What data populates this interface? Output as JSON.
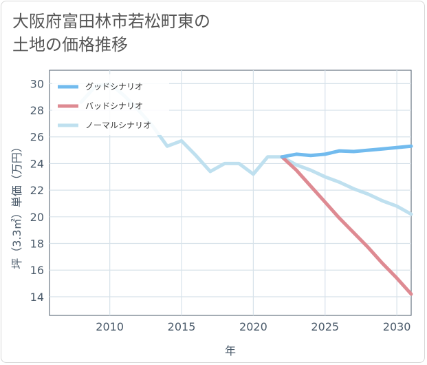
{
  "title_lines": [
    "大阪府富田林市若松町東の",
    "土地の価格推移"
  ],
  "chart_data": {
    "type": "line",
    "title": "大阪府富田林市若松町東の土地の価格推移",
    "xlabel": "年",
    "ylabel": "坪（3.3㎡）単価（万円）",
    "xlim": [
      2005.8,
      2031
    ],
    "ylim": [
      12.6,
      31
    ],
    "xticks": [
      2010,
      2015,
      2020,
      2025,
      2030
    ],
    "yticks": [
      14,
      16,
      18,
      20,
      22,
      24,
      26,
      28,
      30
    ],
    "grid": true,
    "legend_position": "top-left",
    "series": [
      {
        "name": "グッドシナリオ",
        "color": "#72bbee",
        "width": 5,
        "points": [
          [
            2022,
            24.5
          ],
          [
            2023,
            24.7
          ],
          [
            2024,
            24.6
          ],
          [
            2025,
            24.7
          ],
          [
            2026,
            24.95
          ],
          [
            2027,
            24.9
          ],
          [
            2028,
            25.0
          ],
          [
            2029,
            25.1
          ],
          [
            2030,
            25.2
          ],
          [
            2031,
            25.3
          ]
        ]
      },
      {
        "name": "バッドシナリオ",
        "color": "#de8a92",
        "width": 5,
        "points": [
          [
            2022,
            24.5
          ],
          [
            2023,
            23.5
          ],
          [
            2024,
            22.3
          ],
          [
            2025,
            21.1
          ],
          [
            2026,
            19.9
          ],
          [
            2027,
            18.8
          ],
          [
            2028,
            17.7
          ],
          [
            2029,
            16.5
          ],
          [
            2030,
            15.4
          ],
          [
            2031,
            14.2
          ]
        ]
      },
      {
        "name": "ノーマルシナリオ",
        "color": "#bfe0ef",
        "width": 5,
        "points": [
          [
            2008,
            28.6
          ],
          [
            2009,
            29.8
          ],
          [
            2010,
            30.0
          ],
          [
            2011,
            29.1
          ],
          [
            2012,
            28.0
          ],
          [
            2013,
            26.8
          ],
          [
            2014,
            25.3
          ],
          [
            2015,
            25.7
          ],
          [
            2016,
            24.6
          ],
          [
            2017,
            23.4
          ],
          [
            2018,
            24.0
          ],
          [
            2019,
            24.0
          ],
          [
            2020,
            23.2
          ],
          [
            2021,
            24.5
          ],
          [
            2022,
            24.5
          ],
          [
            2023,
            23.9
          ],
          [
            2024,
            23.5
          ],
          [
            2025,
            23.0
          ],
          [
            2026,
            22.6
          ],
          [
            2027,
            22.1
          ],
          [
            2028,
            21.7
          ],
          [
            2029,
            21.2
          ],
          [
            2030,
            20.8
          ],
          [
            2031,
            20.2
          ]
        ]
      }
    ]
  }
}
